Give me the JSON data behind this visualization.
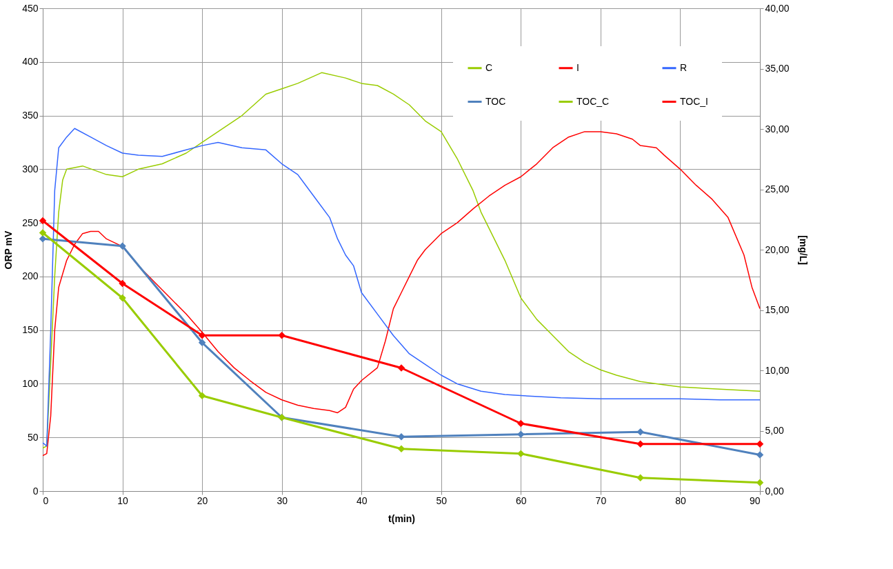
{
  "chart_data": {
    "type": "line",
    "xlabel": "t(min)",
    "ylabel": "ORP mV",
    "y2label": "[mg/L]",
    "xlim": [
      0,
      90
    ],
    "xticks": [
      0,
      10,
      20,
      30,
      40,
      50,
      60,
      70,
      80,
      90
    ],
    "ylim": [
      0,
      450
    ],
    "yticks": [
      0,
      50,
      100,
      150,
      200,
      250,
      300,
      350,
      400,
      450
    ],
    "y2lim": [
      0,
      40
    ],
    "y2ticks": [
      {
        "value": 0,
        "label": "0,00"
      },
      {
        "value": 5,
        "label": "5,00"
      },
      {
        "value": 10,
        "label": "10,00"
      },
      {
        "value": 15,
        "label": "15,00"
      },
      {
        "value": 20,
        "label": "20,00"
      },
      {
        "value": 25,
        "label": "25,00"
      },
      {
        "value": 30,
        "label": "30,00"
      },
      {
        "value": 35,
        "label": "35,00"
      },
      {
        "value": 40,
        "label": "40,00"
      }
    ],
    "grid": true,
    "legend": "top right",
    "line_style": "solid",
    "series": [
      {
        "name": "C",
        "color": "#99cc00",
        "marker": "none",
        "x": [
          0,
          0.5,
          1,
          1.5,
          2,
          2.5,
          3,
          5,
          8,
          10,
          12,
          15,
          18,
          20,
          22,
          25,
          28,
          30,
          32,
          35,
          38,
          40,
          42,
          44,
          46,
          48,
          50,
          52,
          54,
          55,
          56,
          58,
          60,
          62,
          64,
          66,
          68,
          70,
          72,
          75,
          78,
          80,
          85,
          90
        ],
        "values": [
          40,
          42,
          120,
          200,
          260,
          290,
          300,
          303,
          295,
          293,
          300,
          305,
          315,
          325,
          335,
          350,
          370,
          375,
          380,
          390,
          385,
          380,
          378,
          370,
          360,
          345,
          335,
          310,
          280,
          260,
          245,
          215,
          180,
          160,
          145,
          130,
          120,
          113,
          108,
          102,
          99,
          97,
          95,
          93
        ]
      },
      {
        "name": "I",
        "color": "#ff0000",
        "marker": "none",
        "x": [
          0,
          0.5,
          1,
          1.5,
          2,
          3,
          4,
          5,
          6,
          7,
          8,
          10,
          12,
          14,
          16,
          18,
          20,
          22,
          24,
          26,
          28,
          30,
          32,
          34,
          36,
          37,
          38,
          39,
          40,
          42,
          43,
          44,
          45,
          46,
          47,
          48,
          50,
          52,
          54,
          56,
          58,
          60,
          62,
          64,
          66,
          68,
          70,
          72,
          74,
          75,
          77,
          78,
          80,
          82,
          84,
          86,
          88,
          89,
          90
        ],
        "values": [
          33,
          35,
          70,
          150,
          190,
          215,
          230,
          240,
          242,
          242,
          235,
          228,
          210,
          195,
          180,
          165,
          148,
          130,
          115,
          103,
          92,
          85,
          80,
          77,
          75,
          73,
          78,
          95,
          103,
          115,
          140,
          170,
          185,
          200,
          215,
          225,
          240,
          250,
          263,
          275,
          285,
          293,
          305,
          320,
          330,
          335,
          335,
          333,
          328,
          322,
          320,
          313,
          300,
          285,
          272,
          255,
          220,
          190,
          170
        ]
      },
      {
        "name": "R",
        "color": "#3366ff",
        "marker": "none",
        "x": [
          0,
          0.5,
          1,
          1.5,
          2,
          3,
          4,
          6,
          8,
          10,
          12,
          15,
          18,
          20,
          22,
          25,
          28,
          30,
          32,
          34,
          36,
          37,
          38,
          39,
          40,
          42,
          44,
          46,
          48,
          50,
          52,
          55,
          58,
          60,
          65,
          70,
          75,
          80,
          85,
          90
        ],
        "values": [
          45,
          42,
          150,
          280,
          320,
          330,
          338,
          330,
          322,
          315,
          313,
          312,
          318,
          322,
          325,
          320,
          318,
          305,
          295,
          275,
          255,
          235,
          220,
          210,
          185,
          165,
          145,
          128,
          118,
          108,
          100,
          93,
          90,
          89,
          87,
          86,
          86,
          86,
          85,
          85
        ]
      },
      {
        "name": "TOC",
        "color": "#4f81bd",
        "marker": "diamond",
        "axis": "y2",
        "x": [
          0,
          10,
          20,
          30,
          45,
          60,
          75,
          90
        ],
        "values": [
          20.9,
          20.3,
          12.3,
          6.1,
          4.5,
          4.7,
          4.9,
          3.0
        ]
      },
      {
        "name": "TOC_C",
        "color": "#99cc00",
        "marker": "diamond",
        "axis": "y2",
        "x": [
          0,
          10,
          20,
          30,
          45,
          60,
          75,
          90
        ],
        "values": [
          21.4,
          16.0,
          7.9,
          6.1,
          3.5,
          3.1,
          1.1,
          0.7
        ]
      },
      {
        "name": "TOC_I",
        "color": "#ff0000",
        "marker": "diamond",
        "axis": "y2",
        "x": [
          0,
          10,
          20,
          30,
          45,
          60,
          75,
          90
        ],
        "values": [
          22.4,
          17.2,
          12.9,
          12.9,
          10.2,
          5.6,
          3.9,
          3.9
        ]
      }
    ]
  }
}
